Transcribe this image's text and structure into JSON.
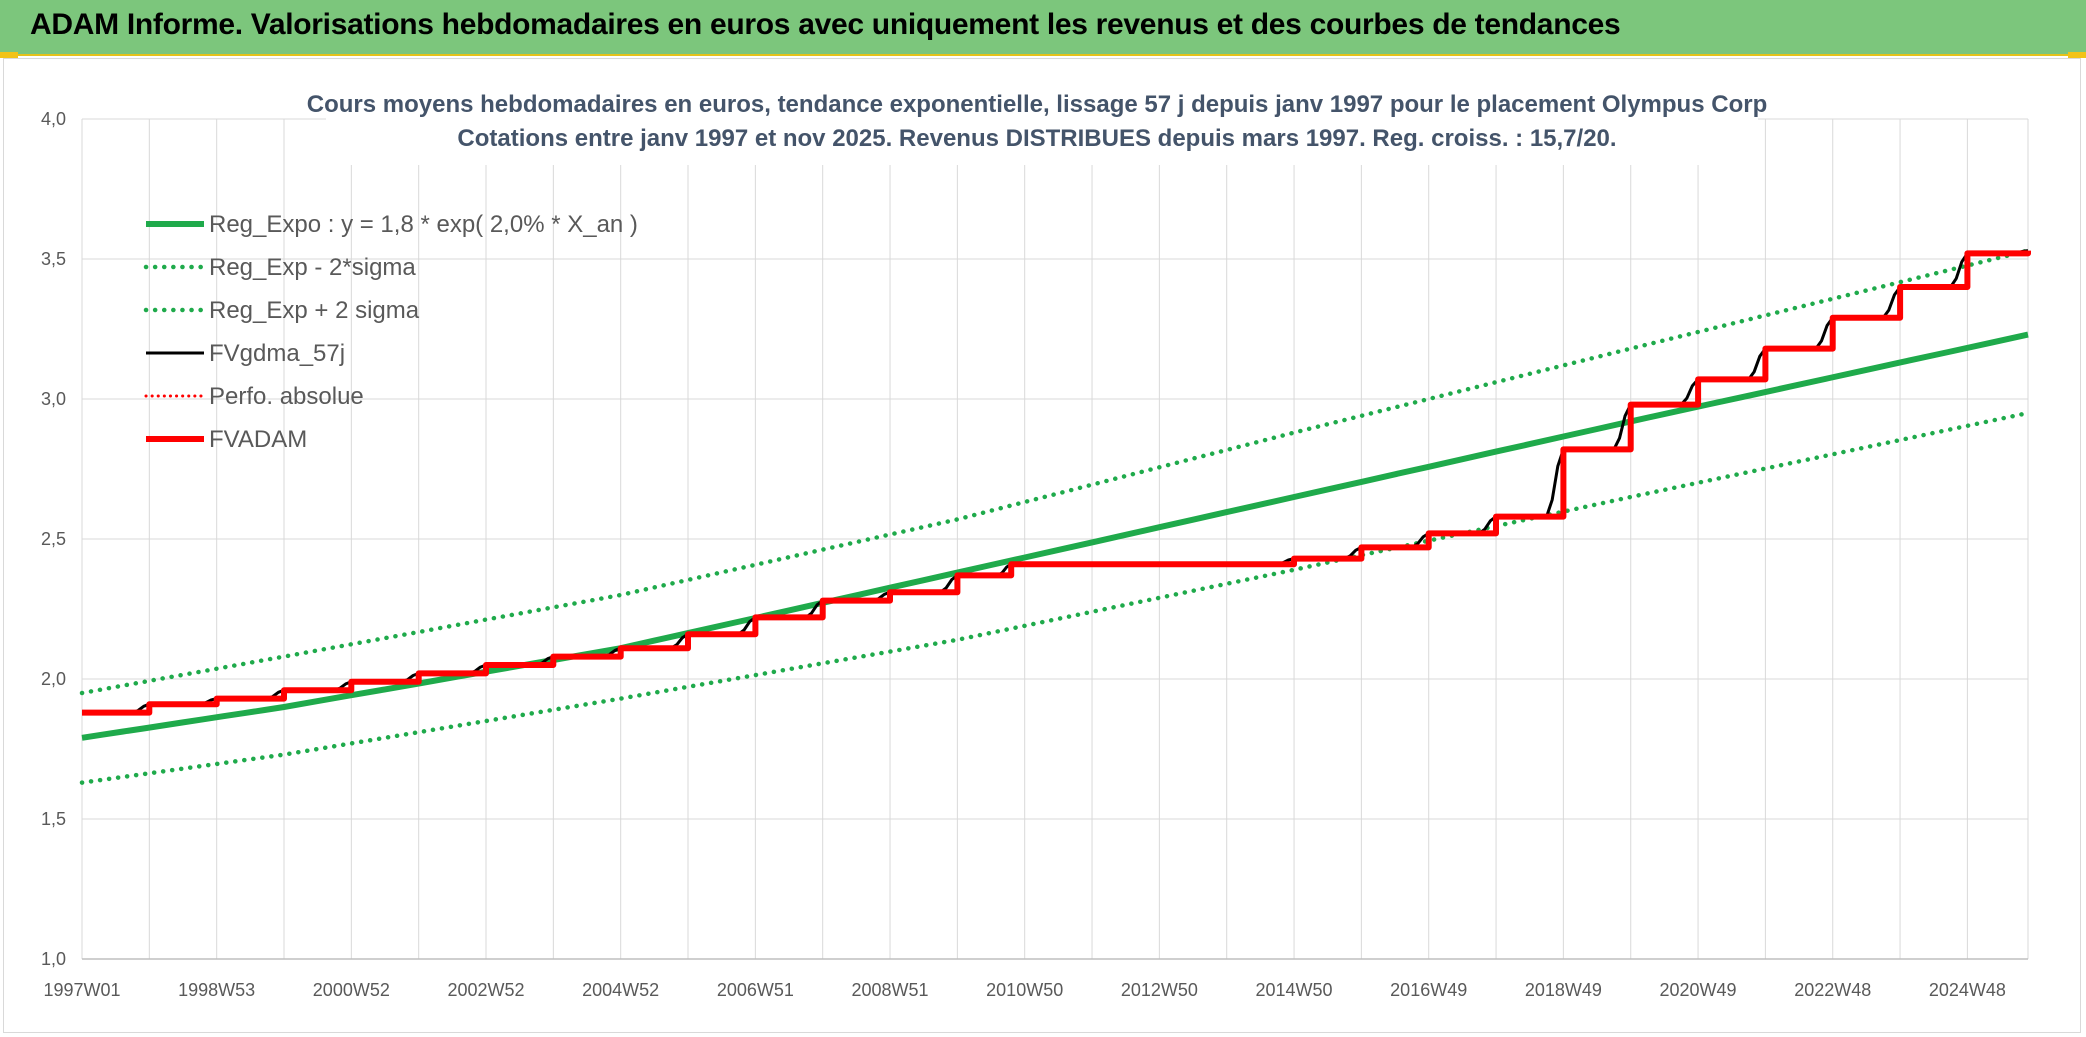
{
  "banner": {
    "title": "ADAM Informe. Valorisations hebdomadaires en euros avec uniquement les revenus et des courbes de tendances"
  },
  "colors": {
    "banner_bg": "#7cc67c",
    "trend_green": "#1faa4b",
    "adam_red": "#ff0000",
    "mma_black": "#000000",
    "grid": "#d9d9d9",
    "title_text": "#44546a"
  },
  "chart_data": {
    "type": "line",
    "title": "Cours moyens hebdomadaires en euros, tendance exponentielle, lissage 57 j depuis janv 1997 pour le placement Olympus Corp",
    "subtitle": "Cotations entre janv 1997 et nov 2025. Revenus DISTRIBUES depuis mars 1997. Reg. croiss. : 15,7/20.",
    "x_tick_labels": [
      "1997W01",
      "1998W53",
      "2000W52",
      "2002W52",
      "2004W52",
      "2006W51",
      "2008W51",
      "2010W50",
      "2012W50",
      "2014W50",
      "2016W49",
      "2018W49",
      "2020W49",
      "2022W48",
      "2024W48"
    ],
    "x_range_years": [
      1997.0,
      2025.9
    ],
    "ylim": [
      1.0,
      4.0
    ],
    "y_tick_labels": [
      "1,0",
      "1,5",
      "2,0",
      "2,5",
      "3,0",
      "3,5",
      "4,0"
    ],
    "y_ticks": [
      1.0,
      1.5,
      2.0,
      2.5,
      3.0,
      3.5,
      4.0
    ],
    "grid": true,
    "legend_position": "top-left",
    "series": [
      {
        "name": "Reg_Expo : y = 1,8 * exp( 2,0% *  X_an )",
        "style": "solid-green",
        "x": [
          1997.0,
          2000,
          2005,
          2010,
          2015,
          2020,
          2025.9
        ],
        "y": [
          1.79,
          1.9,
          2.11,
          2.38,
          2.65,
          2.92,
          3.23
        ]
      },
      {
        "name": "Reg_Exp - 2*sigma",
        "style": "dotted-green",
        "x": [
          1997.0,
          2000,
          2005,
          2010,
          2015,
          2020,
          2025.9
        ],
        "y": [
          1.63,
          1.73,
          1.93,
          2.14,
          2.39,
          2.65,
          2.95
        ]
      },
      {
        "name": "Reg_Exp + 2 sigma",
        "style": "dotted-green",
        "x": [
          1997.0,
          2000,
          2005,
          2010,
          2015,
          2020,
          2025.9
        ],
        "y": [
          1.95,
          2.08,
          2.3,
          2.57,
          2.88,
          3.18,
          3.53
        ]
      },
      {
        "name": "FVgdma_57j",
        "style": "solid-black",
        "x": [
          1997.0,
          1998.0,
          1999.0,
          2000.0,
          2001.0,
          2002.0,
          2003.0,
          2004.0,
          2005.0,
          2006.0,
          2007.0,
          2008.0,
          2009.0,
          2010.0,
          2010.8,
          2011.0,
          2012.0,
          2013.0,
          2014.0,
          2015.0,
          2016.0,
          2017.0,
          2018.0,
          2019.0,
          2020.0,
          2021.0,
          2022.0,
          2023.0,
          2024.0,
          2025.0,
          2025.9
        ],
        "y": [
          1.88,
          1.91,
          1.93,
          1.96,
          1.99,
          2.02,
          2.05,
          2.08,
          2.11,
          2.16,
          2.22,
          2.28,
          2.31,
          2.37,
          2.41,
          2.41,
          2.41,
          2.41,
          2.41,
          2.43,
          2.47,
          2.52,
          2.58,
          2.82,
          2.98,
          3.07,
          3.18,
          3.29,
          3.4,
          3.52,
          3.53
        ]
      },
      {
        "name": "Perfo. absolue",
        "style": "dotted-red",
        "x": [
          1997.0,
          2025.9
        ],
        "y": [
          1.88,
          3.53
        ]
      },
      {
        "name": "FVADAM",
        "style": "solid-red",
        "x": [
          1997.0,
          1998.0,
          1999.0,
          2000.0,
          2001.0,
          2002.0,
          2003.0,
          2004.0,
          2005.0,
          2006.0,
          2007.0,
          2008.0,
          2009.0,
          2010.0,
          2010.8,
          2011.0,
          2012.0,
          2013.0,
          2014.0,
          2015.0,
          2016.0,
          2017.0,
          2018.0,
          2019.0,
          2020.0,
          2021.0,
          2022.0,
          2023.0,
          2024.0,
          2025.0,
          2025.9
        ],
        "y": [
          1.88,
          1.91,
          1.93,
          1.96,
          1.99,
          2.02,
          2.05,
          2.08,
          2.11,
          2.16,
          2.22,
          2.28,
          2.31,
          2.37,
          2.41,
          2.41,
          2.41,
          2.41,
          2.41,
          2.43,
          2.47,
          2.52,
          2.58,
          2.82,
          2.98,
          3.07,
          3.18,
          3.29,
          3.4,
          3.52,
          3.53
        ]
      }
    ]
  }
}
